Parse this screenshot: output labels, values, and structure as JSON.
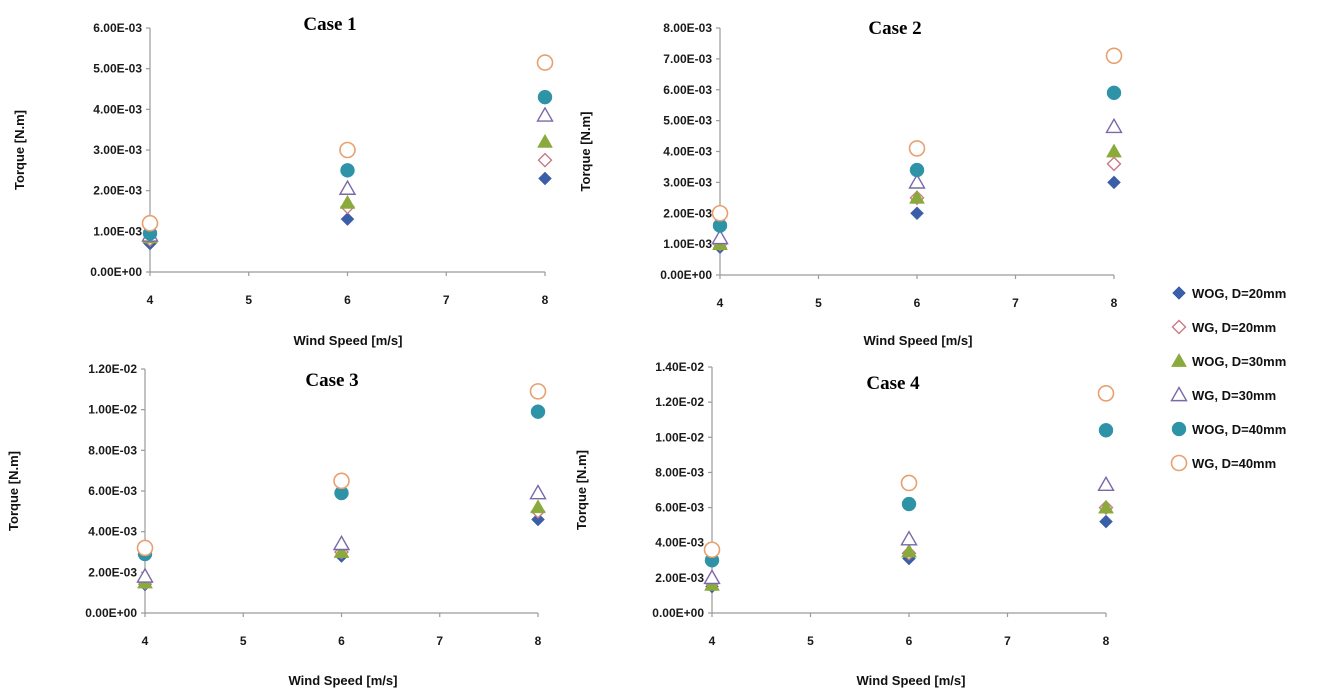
{
  "chart_data": [
    {
      "type": "scatter",
      "title": "Case 1",
      "xlabel": "Wind Speed [m/s]",
      "ylabel": "Torque [N.m]",
      "xlim": [
        4,
        8
      ],
      "ylim": [
        0,
        0.006
      ],
      "x_ticks": [
        "4",
        "5",
        "6",
        "7",
        "8"
      ],
      "y_ticks": [
        "0.00E+00",
        "1.00E-03",
        "2.00E-03",
        "3.00E-03",
        "4.00E-03",
        "5.00E-03",
        "6.00E-03"
      ],
      "x": [
        4,
        6,
        8
      ],
      "series": [
        {
          "name": "WOG, D=20mm",
          "values": [
            0.0007,
            0.0013,
            0.0023
          ]
        },
        {
          "name": "WG, D=20mm",
          "values": [
            0.0008,
            0.0016,
            0.00275
          ]
        },
        {
          "name": "WOG, D=30mm",
          "values": [
            0.00085,
            0.0017,
            0.0032
          ]
        },
        {
          "name": "WG, D=30mm",
          "values": [
            0.0009,
            0.00205,
            0.00385
          ]
        },
        {
          "name": "WOG, D=40mm",
          "values": [
            0.00095,
            0.0025,
            0.0043
          ]
        },
        {
          "name": "WG, D=40mm",
          "values": [
            0.0012,
            0.003,
            0.00515
          ]
        }
      ]
    },
    {
      "type": "scatter",
      "title": "Case 2",
      "xlabel": "Wind Speed [m/s]",
      "ylabel": "Torque [N.m]",
      "xlim": [
        4,
        8
      ],
      "ylim": [
        0,
        0.008
      ],
      "x_ticks": [
        "4",
        "5",
        "6",
        "7",
        "8"
      ],
      "y_ticks": [
        "0.00E+00",
        "1.00E-03",
        "2.00E-03",
        "3.00E-03",
        "4.00E-03",
        "5.00E-03",
        "6.00E-03",
        "7.00E-03",
        "8.00E-03"
      ],
      "x": [
        4,
        6,
        8
      ],
      "series": [
        {
          "name": "WOG, D=20mm",
          "values": [
            0.0009,
            0.002,
            0.003
          ]
        },
        {
          "name": "WG, D=20mm",
          "values": [
            0.001,
            0.0025,
            0.0036
          ]
        },
        {
          "name": "WOG, D=30mm",
          "values": [
            0.001,
            0.0025,
            0.004
          ]
        },
        {
          "name": "WG, D=30mm",
          "values": [
            0.0012,
            0.003,
            0.0048
          ]
        },
        {
          "name": "WOG, D=40mm",
          "values": [
            0.0016,
            0.0034,
            0.0059
          ]
        },
        {
          "name": "WG, D=40mm",
          "values": [
            0.002,
            0.0041,
            0.0071
          ]
        }
      ]
    },
    {
      "type": "scatter",
      "title": "Case 3",
      "xlabel": "Wind Speed [m/s]",
      "ylabel": "Torque [N.m]",
      "xlim": [
        4,
        8
      ],
      "ylim": [
        0,
        0.012
      ],
      "x_ticks": [
        "4",
        "5",
        "6",
        "7",
        "8"
      ],
      "y_ticks": [
        "0.00E+00",
        "2.00E-03",
        "4.00E-03",
        "6.00E-03",
        "8.00E-03",
        "1.00E-02",
        "1.20E-02"
      ],
      "x": [
        4,
        6,
        8
      ],
      "series": [
        {
          "name": "WOG, D=20mm",
          "values": [
            0.0014,
            0.0028,
            0.0046
          ]
        },
        {
          "name": "WG, D=20mm",
          "values": [
            0.0015,
            0.003,
            0.005
          ]
        },
        {
          "name": "WOG, D=30mm",
          "values": [
            0.0015,
            0.003,
            0.0052
          ]
        },
        {
          "name": "WG, D=30mm",
          "values": [
            0.0018,
            0.0034,
            0.0059
          ]
        },
        {
          "name": "WOG, D=40mm",
          "values": [
            0.0029,
            0.0059,
            0.0099
          ]
        },
        {
          "name": "WG, D=40mm",
          "values": [
            0.0032,
            0.0065,
            0.0109
          ]
        }
      ]
    },
    {
      "type": "scatter",
      "title": "Case 4",
      "xlabel": "Wind Speed [m/s]",
      "ylabel": "Torque [N.m]",
      "xlim": [
        4,
        8
      ],
      "ylim": [
        0,
        0.014
      ],
      "x_ticks": [
        "4",
        "5",
        "6",
        "7",
        "8"
      ],
      "y_ticks": [
        "0.00E+00",
        "2.00E-03",
        "4.00E-03",
        "6.00E-03",
        "8.00E-03",
        "1.00E-02",
        "1.20E-02",
        "1.40E-02"
      ],
      "x": [
        4,
        6,
        8
      ],
      "series": [
        {
          "name": "WOG, D=20mm",
          "values": [
            0.0015,
            0.0031,
            0.0052
          ]
        },
        {
          "name": "WG, D=20mm",
          "values": [
            0.0017,
            0.0034,
            0.006
          ]
        },
        {
          "name": "WOG, D=30mm",
          "values": [
            0.0016,
            0.0035,
            0.006
          ]
        },
        {
          "name": "WG, D=30mm",
          "values": [
            0.002,
            0.0042,
            0.0073
          ]
        },
        {
          "name": "WOG, D=40mm",
          "values": [
            0.003,
            0.0062,
            0.0104
          ]
        },
        {
          "name": "WG, D=40mm",
          "values": [
            0.0036,
            0.0074,
            0.0125
          ]
        }
      ]
    }
  ],
  "legend": {
    "placement": "right",
    "entries": [
      {
        "label": "WOG, D=20mm",
        "marker": "diamond-filled",
        "color": "#3a5ea8"
      },
      {
        "label": "WG, D=20mm",
        "marker": "diamond-open",
        "color": "#c97a85"
      },
      {
        "label": "WOG, D=30mm",
        "marker": "triangle-filled",
        "color": "#8aaa3c"
      },
      {
        "label": "WG, D=30mm",
        "marker": "triangle-open",
        "color": "#7a68a8"
      },
      {
        "label": "WOG, D=40mm",
        "marker": "circle-filled",
        "color": "#2f93a8"
      },
      {
        "label": "WG, D=40mm",
        "marker": "circle-open",
        "color": "#e8a070"
      }
    ]
  }
}
